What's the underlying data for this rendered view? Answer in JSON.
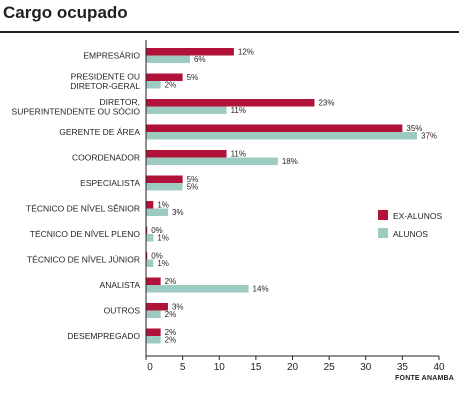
{
  "page": {
    "title": "Cargo ocupado",
    "source": "FONTE ANAMBA"
  },
  "chart_data": {
    "type": "bar",
    "orientation": "horizontal",
    "title": "Cargo ocupado",
    "categories": [
      [
        "EMPRESÁRIO"
      ],
      [
        "PRESIDENTE OU",
        "DIRETOR-GERAL"
      ],
      [
        "DIRETOR,",
        "SUPERINTENDENTE OU SÓCIO"
      ],
      [
        "GERENTE DE ÁREA"
      ],
      [
        "COORDENADOR"
      ],
      [
        "ESPECIALISTA"
      ],
      [
        "TÉCNICO DE NÍVEL SÊNIOR"
      ],
      [
        "TÉCNICO DE NÍVEL PLENO"
      ],
      [
        "TÉCNICO DE NÍVEL JÚNIOR"
      ],
      [
        "ANALISTA"
      ],
      [
        "OUTROS"
      ],
      [
        "DESEMPREGADO"
      ]
    ],
    "series": [
      {
        "name": "EX-ALUNOS",
        "color": "#b1123a",
        "values": [
          12,
          5,
          23,
          35,
          11,
          5,
          1,
          0,
          0,
          2,
          3,
          2
        ],
        "labels": [
          "12%",
          "5%",
          "23%",
          "35%",
          "11%",
          "5%",
          "1%",
          "0%",
          "0%",
          "2%",
          "3%",
          "2%"
        ]
      },
      {
        "name": "ALUNOS",
        "color": "#9ecbc1",
        "values": [
          6,
          2,
          11,
          37,
          18,
          5,
          3,
          1,
          1,
          14,
          2,
          2
        ],
        "labels": [
          "6%",
          "2%",
          "11%",
          "37%",
          "18%",
          "5%",
          "3%",
          "1%",
          "1%",
          "14%",
          "2%",
          "2%"
        ]
      }
    ],
    "xticks": [
      "0",
      "5",
      "10",
      "15",
      "20",
      "25",
      "30",
      "35",
      "40"
    ],
    "xlim": [
      0,
      40
    ],
    "grid": false,
    "legend": "right"
  }
}
